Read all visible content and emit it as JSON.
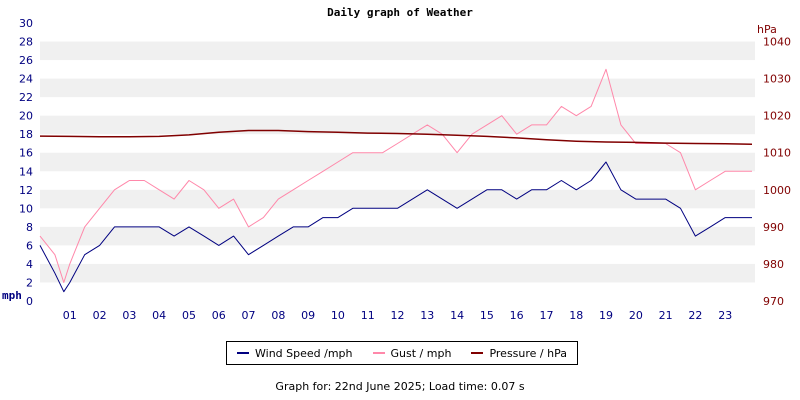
{
  "title": "Daily graph of Weather",
  "footer": "Graph for: 22nd June 2025; Load time: 0.07 s",
  "colors": {
    "wind": "#000080",
    "gust": "#ff88aa",
    "pressure": "#800000",
    "band": "#f0f0f0",
    "axis_left": "#000080",
    "axis_right": "#800000"
  },
  "legend": [
    {
      "label": "Wind Speed /mph",
      "color": "#000080"
    },
    {
      "label": "Gust / mph",
      "color": "#ff88aa"
    },
    {
      "label": "Pressure / hPa",
      "color": "#800000"
    }
  ],
  "chart_data": {
    "type": "line",
    "title": "Daily graph of Weather",
    "x_unit": "hour",
    "xlim": [
      0,
      24
    ],
    "x_tick_labels": [
      "01",
      "02",
      "03",
      "04",
      "05",
      "06",
      "07",
      "08",
      "09",
      "10",
      "11",
      "12",
      "13",
      "14",
      "15",
      "16",
      "17",
      "18",
      "19",
      "20",
      "21",
      "22",
      "23"
    ],
    "y_left": {
      "label": "mph",
      "lim": [
        0,
        30
      ],
      "ticks": [
        0,
        2,
        4,
        6,
        8,
        10,
        12,
        14,
        16,
        18,
        20,
        22,
        24,
        26,
        28,
        30
      ]
    },
    "y_right": {
      "label": "hPa",
      "lim": [
        970,
        1045
      ],
      "ticks": [
        970,
        980,
        990,
        1000,
        1010,
        1020,
        1030,
        1040
      ]
    },
    "grid": "alternating horizontal bands",
    "legend_position": "bottom",
    "series": [
      {
        "name": "Wind Speed /mph",
        "axis": "left",
        "x": [
          0,
          0.5,
          0.8,
          1,
          1.5,
          2,
          2.5,
          3,
          3.5,
          4,
          4.5,
          5,
          5.5,
          6,
          6.5,
          7,
          7.5,
          8,
          8.5,
          9,
          9.5,
          10,
          10.5,
          11,
          11.5,
          12,
          12.5,
          13,
          13.5,
          14,
          14.5,
          15,
          15.5,
          16,
          16.5,
          17,
          17.5,
          18,
          18.5,
          19,
          19.5,
          20,
          20.5,
          21,
          21.5,
          22,
          22.5,
          23,
          23.5,
          23.9
        ],
        "values": [
          6,
          3,
          1,
          2,
          5,
          6,
          8,
          8,
          8,
          8,
          7,
          8,
          7,
          6,
          7,
          5,
          6,
          7,
          8,
          8,
          9,
          9,
          10,
          10,
          10,
          10,
          11,
          12,
          11,
          10,
          11,
          12,
          12,
          11,
          12,
          12,
          13,
          12,
          13,
          15,
          12,
          11,
          11,
          11,
          10,
          7,
          8,
          9,
          9,
          9
        ]
      },
      {
        "name": "Gust / mph",
        "axis": "left",
        "x": [
          0,
          0.5,
          0.8,
          1,
          1.5,
          2,
          2.5,
          3,
          3.5,
          4,
          4.5,
          5,
          5.5,
          6,
          6.5,
          7,
          7.5,
          8,
          8.5,
          9,
          9.5,
          10,
          10.5,
          11,
          11.5,
          12,
          12.5,
          13,
          13.5,
          14,
          14.5,
          15,
          15.5,
          16,
          16.5,
          17,
          17.5,
          18,
          18.5,
          19,
          19.5,
          20,
          20.5,
          21,
          21.5,
          22,
          22.5,
          23,
          23.5,
          23.9
        ],
        "values": [
          7,
          5,
          2,
          4,
          8,
          10,
          12,
          13,
          13,
          12,
          11,
          13,
          12,
          10,
          11,
          8,
          9,
          11,
          12,
          13,
          14,
          15,
          16,
          16,
          16,
          17,
          18,
          19,
          18,
          16,
          18,
          19,
          20,
          18,
          19,
          19,
          21,
          20,
          21,
          25,
          19,
          17,
          17,
          17,
          16,
          12,
          13,
          14,
          14,
          14
        ]
      },
      {
        "name": "Pressure / hPa",
        "axis": "right",
        "x": [
          0,
          1,
          2,
          3,
          4,
          5,
          6,
          7,
          8,
          9,
          10,
          11,
          12,
          13,
          14,
          15,
          16,
          17,
          18,
          19,
          20,
          21,
          22,
          23,
          23.9
        ],
        "values": [
          1014.5,
          1014.4,
          1014.3,
          1014.3,
          1014.4,
          1014.8,
          1015.5,
          1016.0,
          1016.0,
          1015.7,
          1015.5,
          1015.3,
          1015.2,
          1015.0,
          1014.7,
          1014.4,
          1014.0,
          1013.5,
          1013.1,
          1012.9,
          1012.8,
          1012.6,
          1012.5,
          1012.4,
          1012.3
        ]
      }
    ]
  }
}
